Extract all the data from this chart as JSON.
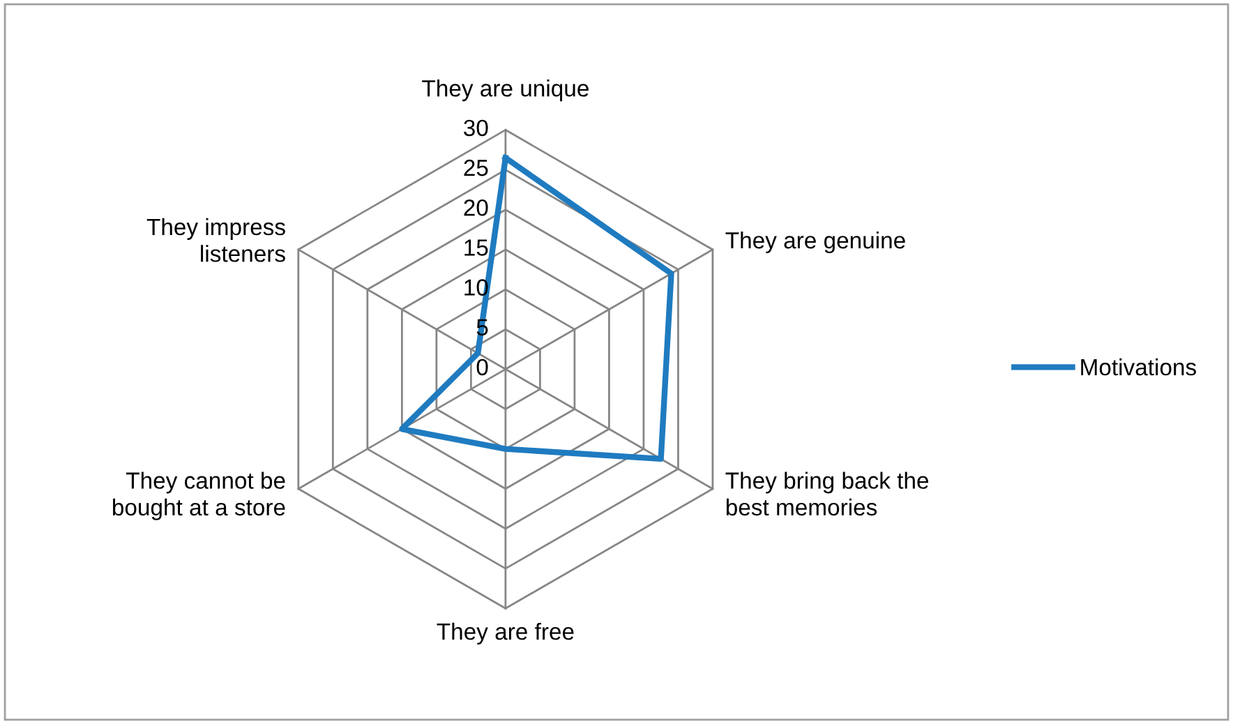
{
  "chart_data": {
    "type": "radar",
    "categories": [
      "They are unique",
      "They are genuine",
      "They bring back the\nbest memories",
      "They are free",
      "They cannot be\nbought at a store",
      "They impress\nlisteners"
    ],
    "series": [
      {
        "name": "Motivations",
        "color": "#1f7bc0",
        "values": [
          26.5,
          24,
          22.5,
          10,
          15,
          4
        ]
      }
    ],
    "ylim": [
      0,
      30
    ],
    "yticks": [
      0,
      5,
      10,
      15,
      20,
      25,
      30
    ],
    "grid": true,
    "legend": "right",
    "marker": "none",
    "line_style": "solid"
  }
}
